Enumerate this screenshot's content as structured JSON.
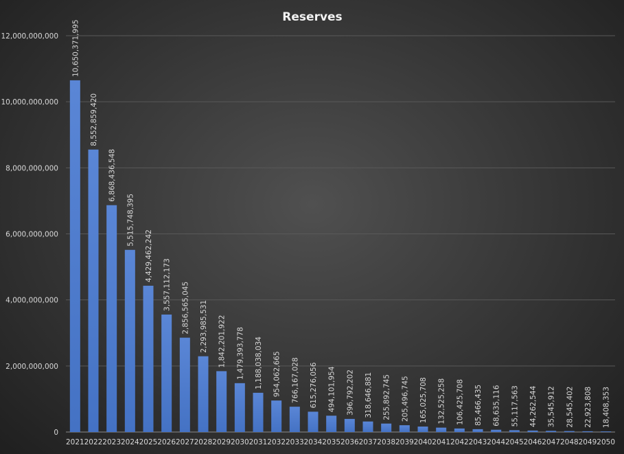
{
  "chart_data": {
    "type": "bar",
    "title": "Reserves",
    "xlabel": "",
    "ylabel": "",
    "ylim": [
      0,
      12000000000
    ],
    "yticks": [
      "0",
      "2,000,000,000",
      "4,000,000,000",
      "6,000,000,000",
      "8,000,000,000",
      "10,000,000,000",
      "12,000,000,000"
    ],
    "grid": true,
    "legend": "none",
    "bar_color": "#4472c4",
    "categories": [
      "2021",
      "2022",
      "2023",
      "2024",
      "2025",
      "2026",
      "2027",
      "2028",
      "2029",
      "2030",
      "2031",
      "2032",
      "2033",
      "2034",
      "2035",
      "2036",
      "2037",
      "2038",
      "2039",
      "2040",
      "2041",
      "2042",
      "2043",
      "2044",
      "2045",
      "2046",
      "2047",
      "2048",
      "2049",
      "2050"
    ],
    "values": [
      10650371995,
      8552859420,
      6868436548,
      5515748395,
      4429462242,
      3557112173,
      2856565045,
      2293985531,
      1842201922,
      1479393778,
      1188038034,
      954062665,
      766167028,
      615276056,
      494101954,
      396792202,
      318646881,
      255892745,
      205496745,
      165025708,
      132525258,
      106425708,
      85466435,
      68635116,
      55117563,
      44262544,
      35545912,
      28545402,
      22923808,
      18408353
    ],
    "labels": [
      "10,650,371,995",
      "8,552,859,420",
      "6,868,436,548",
      "5,515,748,395",
      "4,429,462,242",
      "3,557,112,173",
      "2,856,565,045",
      "2,293,985,531",
      "1,842,201,922",
      "1,479,393,778",
      "1,188,038,034",
      "954,062,665",
      "766,167,028",
      "615,276,056",
      "494,101,954",
      "396,792,202",
      "318,646,881",
      "255,892,745",
      "205,496,745",
      "165,025,708",
      "132,525,258",
      "106,425,708",
      "85,466,435",
      "68,635,116",
      "55,117,563",
      "44,262,544",
      "35,545,912",
      "28,545,402",
      "22,923,808",
      "18,408,353"
    ]
  }
}
